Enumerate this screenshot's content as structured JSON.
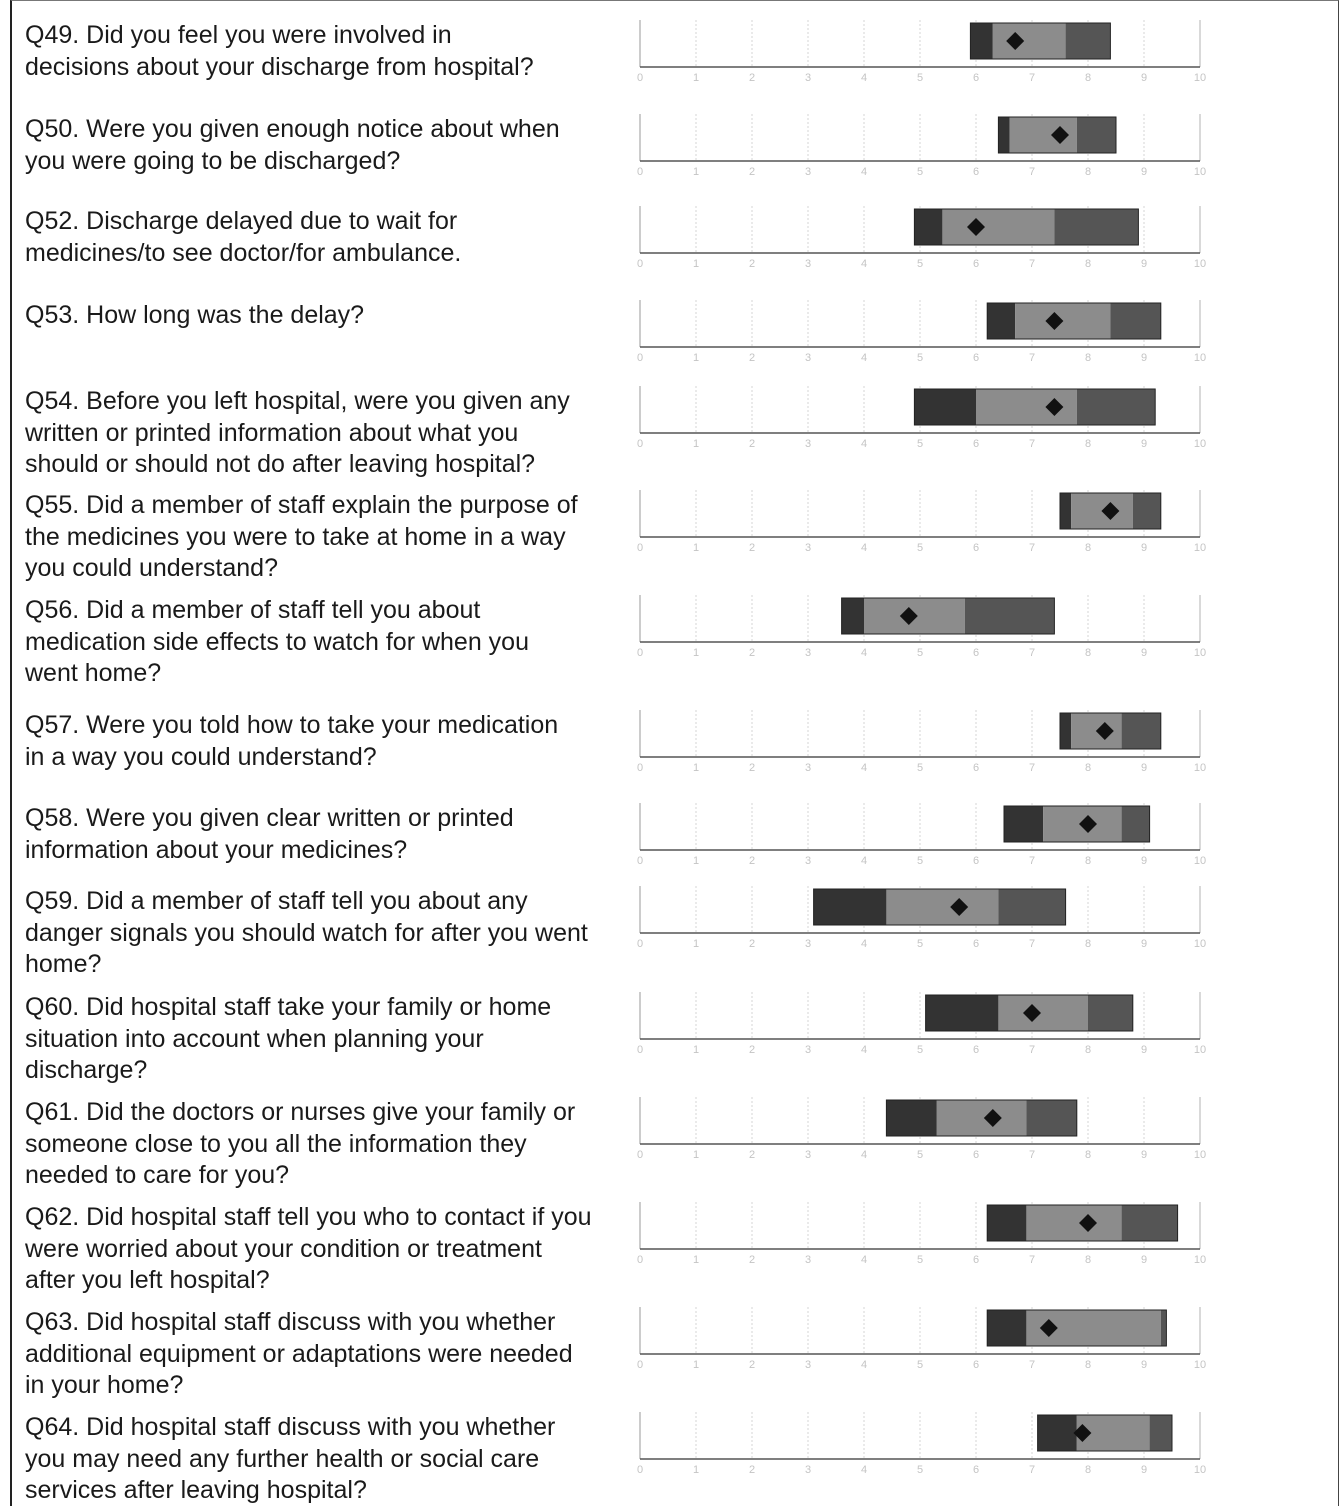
{
  "scale": {
    "min": 0,
    "max": 10,
    "ticks": [
      "0",
      "1",
      "2",
      "3",
      "4",
      "5",
      "6",
      "7",
      "8",
      "9",
      "10"
    ]
  },
  "colors": {
    "lower": "#333333",
    "middle": "#8c8c8c",
    "upper": "#555555",
    "marker": "#111111",
    "axis": "#555555",
    "grid": "#cccccc"
  },
  "chart_data": {
    "type": "bar",
    "orientation": "horizontal",
    "xlim": [
      0,
      10
    ],
    "grid": true,
    "categories": [
      "Q49",
      "Q50",
      "Q52",
      "Q53",
      "Q54",
      "Q55",
      "Q56",
      "Q57",
      "Q58",
      "Q59",
      "Q60",
      "Q61",
      "Q62",
      "Q63",
      "Q64"
    ],
    "rows": [
      {
        "q": "Q49. Did you feel you were involved in\ndecisions about your discharge from hospital?",
        "range": [
          5.9,
          8.4
        ],
        "bands": [
          6.3,
          7.6
        ],
        "score": 6.7
      },
      {
        "q": "Q50. Were you given enough notice about when\nyou were going to be discharged?",
        "range": [
          6.4,
          8.5
        ],
        "bands": [
          6.6,
          7.8
        ],
        "score": 7.5
      },
      {
        "q": "Q52. Discharge delayed due to wait for\nmedicines/to see doctor/for ambulance.",
        "range": [
          4.9,
          8.9
        ],
        "bands": [
          5.4,
          7.4
        ],
        "score": 6.0
      },
      {
        "q": "Q53. How long was the delay?",
        "range": [
          6.2,
          9.3
        ],
        "bands": [
          6.7,
          8.4
        ],
        "score": 7.4
      },
      {
        "q": "Q54. Before you left hospital, were you given any\nwritten or printed information about what you\nshould or should not do after leaving hospital?",
        "range": [
          4.9,
          9.2
        ],
        "bands": [
          6.0,
          7.8
        ],
        "score": 7.4
      },
      {
        "q": "Q55. Did a member of staff explain the purpose of\nthe medicines you were to take at home in a way\nyou could understand?",
        "range": [
          7.5,
          9.3
        ],
        "bands": [
          7.7,
          8.8
        ],
        "score": 8.4
      },
      {
        "q": "Q56. Did a member of staff tell you about\nmedication side effects to watch for when you\nwent home?",
        "range": [
          3.6,
          7.4
        ],
        "bands": [
          4.0,
          5.8
        ],
        "score": 4.8
      },
      {
        "q": "Q57. Were you told how to take your medication\nin a way you could understand?",
        "range": [
          7.5,
          9.3
        ],
        "bands": [
          7.7,
          8.6
        ],
        "score": 8.3
      },
      {
        "q": "Q58. Were you given clear written or printed\ninformation about your medicines?",
        "range": [
          6.5,
          9.1
        ],
        "bands": [
          7.2,
          8.6
        ],
        "score": 8.0
      },
      {
        "q": "Q59. Did a member of staff tell you about any\ndanger signals you should watch for after you went\nhome?",
        "range": [
          3.1,
          7.6
        ],
        "bands": [
          4.4,
          6.4
        ],
        "score": 5.7
      },
      {
        "q": "Q60. Did hospital staff take your family or home\nsituation into account when planning your\ndischarge?",
        "range": [
          5.1,
          8.8
        ],
        "bands": [
          6.4,
          8.0
        ],
        "score": 7.0
      },
      {
        "q": "Q61. Did the doctors or nurses give your family or\nsomeone close to you all the information they\nneeded to care for you?",
        "range": [
          4.4,
          7.8
        ],
        "bands": [
          5.3,
          6.9
        ],
        "score": 6.3
      },
      {
        "q": "Q62. Did hospital staff tell you who to contact if you\nwere worried about your condition or treatment\nafter you left hospital?",
        "range": [
          6.2,
          9.6
        ],
        "bands": [
          6.9,
          8.6
        ],
        "score": 8.0
      },
      {
        "q": "Q63. Did hospital staff discuss with you whether\nadditional equipment or adaptations were needed\nin your home?",
        "range": [
          6.2,
          9.4
        ],
        "bands": [
          6.9,
          9.3
        ],
        "score": 7.3
      },
      {
        "q": "Q64. Did hospital staff discuss with you whether\nyou may need any further health or social care\nservices after leaving hospital?",
        "range": [
          7.1,
          9.5
        ],
        "bands": [
          7.8,
          9.1
        ],
        "score": 7.9
      }
    ]
  }
}
